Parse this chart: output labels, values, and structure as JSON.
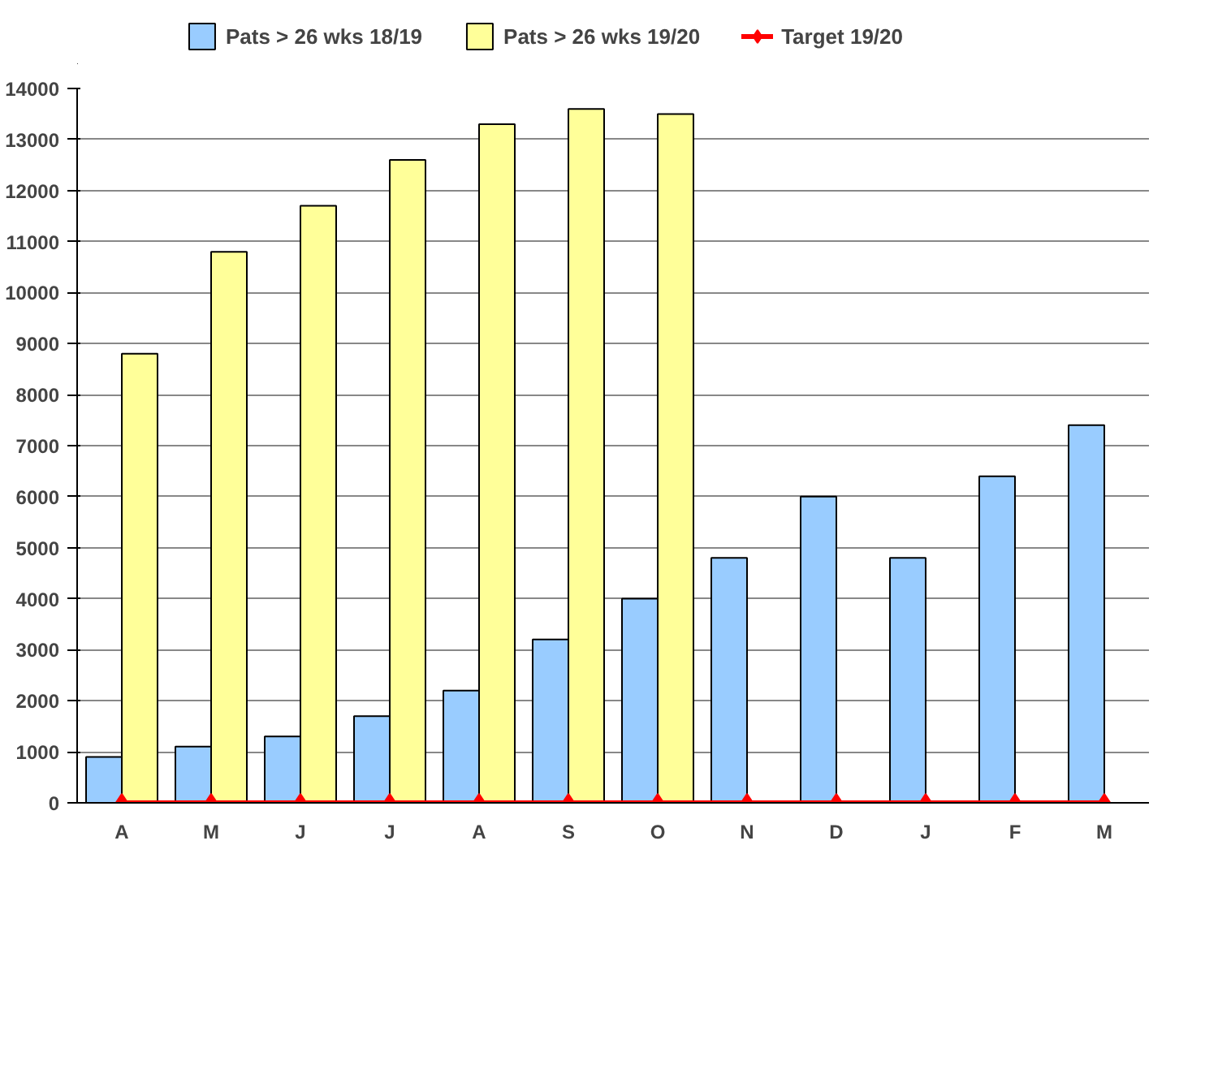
{
  "chart_data": {
    "type": "bar",
    "categories": [
      "A",
      "M",
      "J",
      "J",
      "A",
      "S",
      "O",
      "N",
      "D",
      "J",
      "F",
      "M"
    ],
    "series": [
      {
        "name": "Pats > 26 wks 18/19",
        "color": "#99ccff",
        "values": [
          900,
          1100,
          1300,
          1700,
          2200,
          3200,
          4000,
          4800,
          6000,
          4800,
          6400,
          7400
        ]
      },
      {
        "name": "Pats > 26 wks 19/20",
        "color": "#ffff99",
        "values": [
          8800,
          10800,
          11700,
          12600,
          13300,
          13600,
          13500,
          null,
          null,
          null,
          null,
          null
        ]
      },
      {
        "name": "Target 19/20",
        "color": "#ff0000",
        "type": "line",
        "marker": "diamond",
        "line_style": "solid",
        "values": [
          0,
          0,
          0,
          0,
          0,
          0,
          0,
          0,
          0,
          0,
          0,
          0
        ]
      }
    ],
    "ylim": [
      0,
      14000
    ],
    "yticks": [
      0,
      1000,
      2000,
      3000,
      4000,
      5000,
      6000,
      7000,
      8000,
      9000,
      10000,
      11000,
      12000,
      13000,
      14000
    ],
    "grid": "y",
    "legend": "top"
  }
}
